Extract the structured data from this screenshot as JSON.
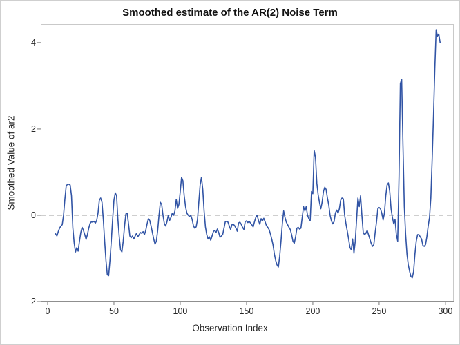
{
  "title": "Smoothed estimate of the AR(2) Noise Term",
  "axes": {
    "x_title": "Observation Index",
    "y_title": "Smoothed Value of ar2"
  },
  "colors": {
    "series_line": "#3154a5",
    "reference_line": "#9e9e9e",
    "axis_line": "#8f8f8f",
    "frame": "#c9c9c9",
    "tick": "#777777",
    "text": "#262626",
    "background": "#ffffff"
  },
  "chart_data": {
    "type": "line",
    "title": "Smoothed estimate of the AR(2) Noise Term",
    "xlabel": "Observation Index",
    "ylabel": "Smoothed Value of ar2",
    "x_ticks": [
      0,
      50,
      100,
      150,
      200,
      250,
      300
    ],
    "y_ticks": [
      -2,
      0,
      2,
      4
    ],
    "xlim": [
      -5.2,
      306.3
    ],
    "ylim": [
      -2,
      4.43
    ],
    "grid": false,
    "legend": "none",
    "reference_line_y": 0,
    "series": [
      {
        "name": "smoothed-ar2",
        "x_start": 6,
        "x_step": 1,
        "y": [
          -0.43,
          -0.48,
          -0.38,
          -0.3,
          -0.25,
          -0.22,
          0.0,
          0.37,
          0.68,
          0.72,
          0.72,
          0.7,
          0.45,
          -0.29,
          -0.64,
          -0.85,
          -0.75,
          -0.83,
          -0.6,
          -0.4,
          -0.28,
          -0.35,
          -0.45,
          -0.56,
          -0.45,
          -0.3,
          -0.19,
          -0.15,
          -0.16,
          -0.14,
          -0.18,
          -0.12,
          0.05,
          0.35,
          0.4,
          0.3,
          -0.1,
          -0.6,
          -1.05,
          -1.38,
          -1.4,
          -1.05,
          -0.6,
          -0.1,
          0.35,
          0.52,
          0.45,
          -0.1,
          -0.5,
          -0.8,
          -0.85,
          -0.6,
          -0.25,
          0.03,
          0.05,
          -0.2,
          -0.48,
          -0.52,
          -0.48,
          -0.55,
          -0.48,
          -0.42,
          -0.5,
          -0.45,
          -0.4,
          -0.42,
          -0.38,
          -0.45,
          -0.35,
          -0.2,
          -0.08,
          -0.12,
          -0.25,
          -0.4,
          -0.55,
          -0.67,
          -0.6,
          -0.35,
          0.0,
          0.3,
          0.25,
          0.0,
          -0.19,
          -0.25,
          -0.15,
          0.0,
          -0.12,
          -0.05,
          0.05,
          0.0,
          0.1,
          0.37,
          0.16,
          0.25,
          0.55,
          0.88,
          0.8,
          0.45,
          0.2,
          0.05,
          0.0,
          -0.03,
          0.0,
          -0.1,
          -0.25,
          -0.3,
          -0.27,
          -0.1,
          0.3,
          0.7,
          0.88,
          0.6,
          0.1,
          -0.27,
          -0.45,
          -0.55,
          -0.5,
          -0.58,
          -0.48,
          -0.38,
          -0.35,
          -0.4,
          -0.32,
          -0.4,
          -0.51,
          -0.48,
          -0.45,
          -0.3,
          -0.15,
          -0.14,
          -0.16,
          -0.25,
          -0.33,
          -0.22,
          -0.21,
          -0.24,
          -0.3,
          -0.37,
          -0.18,
          -0.16,
          -0.21,
          -0.28,
          -0.33,
          -0.15,
          -0.13,
          -0.17,
          -0.14,
          -0.18,
          -0.22,
          -0.27,
          -0.15,
          -0.05,
          0.0,
          -0.12,
          -0.21,
          -0.08,
          -0.13,
          -0.07,
          -0.15,
          -0.24,
          -0.28,
          -0.33,
          -0.43,
          -0.55,
          -0.69,
          -0.9,
          -1.05,
          -1.15,
          -1.2,
          -0.95,
          -0.6,
          -0.2,
          0.1,
          -0.05,
          -0.16,
          -0.22,
          -0.28,
          -0.33,
          -0.45,
          -0.6,
          -0.65,
          -0.5,
          -0.3,
          -0.28,
          -0.32,
          -0.3,
          -0.05,
          0.2,
          0.1,
          0.2,
          0.0,
          -0.08,
          -0.13,
          0.55,
          0.5,
          1.5,
          1.35,
          0.75,
          0.48,
          0.3,
          0.15,
          0.3,
          0.55,
          0.65,
          0.6,
          0.4,
          0.24,
          0.0,
          -0.13,
          -0.2,
          -0.15,
          0.05,
          0.12,
          0.05,
          0.15,
          0.35,
          0.4,
          0.38,
          0.0,
          -0.2,
          -0.37,
          -0.55,
          -0.75,
          -0.8,
          -0.55,
          -0.88,
          -0.6,
          -0.1,
          0.4,
          0.2,
          0.45,
          0.0,
          -0.4,
          -0.45,
          -0.42,
          -0.35,
          -0.45,
          -0.55,
          -0.65,
          -0.72,
          -0.68,
          -0.4,
          -0.16,
          0.15,
          0.18,
          0.15,
          0.05,
          -0.11,
          0.05,
          0.45,
          0.7,
          0.75,
          0.55,
          0.15,
          -0.05,
          -0.2,
          -0.1,
          -0.45,
          -0.6,
          0.9,
          3.05,
          3.15,
          1.6,
          0.2,
          -0.45,
          -0.9,
          -1.15,
          -1.3,
          -1.42,
          -1.45,
          -1.3,
          -0.9,
          -0.6,
          -0.45,
          -0.45,
          -0.5,
          -0.55,
          -0.7,
          -0.72,
          -0.68,
          -0.5,
          -0.25,
          -0.05,
          0.4,
          1.3,
          2.3,
          3.4,
          4.3,
          4.15,
          4.2,
          4.0
        ]
      }
    ]
  }
}
